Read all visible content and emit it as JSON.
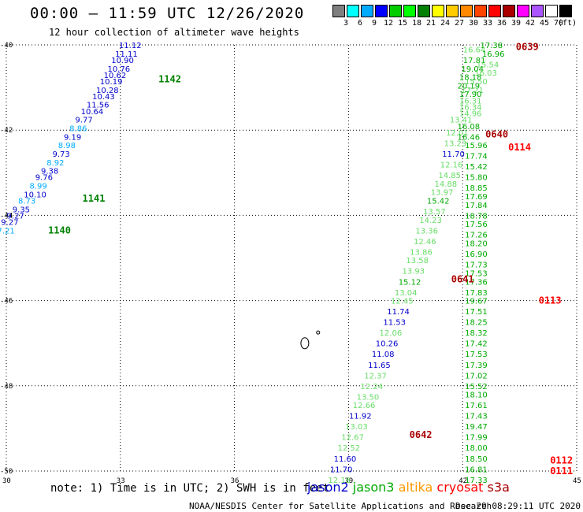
{
  "header": {
    "title": "00:00 – 11:59 UTC 12/26/2020",
    "subtitle": "12 hour collection of altimeter wave heights"
  },
  "legend": {
    "unit": "(ft)",
    "colors": [
      "#7f7f7f",
      "#00ffff",
      "#00aaff",
      "#0000ff",
      "#00cc00",
      "#00ff00",
      "#008000",
      "#ffff00",
      "#ffcc00",
      "#ff8800",
      "#ff4400",
      "#ff0000",
      "#aa0000",
      "#ff00ff",
      "#aa55ff",
      "#ffffff",
      "#000000"
    ],
    "levels": [
      "3",
      "6",
      "9",
      "12",
      "15",
      "18",
      "21",
      "24",
      "27",
      "30",
      "33",
      "36",
      "39",
      "42",
      "45",
      "70"
    ]
  },
  "axes": {
    "lat_ticks": [
      "-40",
      "-42",
      "-44",
      "-46",
      "-48",
      "-50"
    ],
    "lon_ticks": [
      "30",
      "33",
      "36",
      "39",
      "42",
      "45"
    ],
    "lon_range": [
      30,
      45
    ],
    "lat_range": [
      -40,
      -50
    ]
  },
  "tracks": [
    {
      "satellite": "jason3",
      "time": "1140",
      "color": "#008000",
      "lon": 31.1,
      "lat": -44.35
    },
    {
      "satellite": "jason3",
      "time": "1141",
      "color": "#008000",
      "lon": 32.0,
      "lat": -43.6
    },
    {
      "satellite": "jason3",
      "time": "1142",
      "color": "#008000",
      "lon": 34.0,
      "lat": -40.8
    },
    {
      "satellite": "cryosat",
      "time": "0639",
      "color": "#aa0000",
      "lon": 43.4,
      "lat": -40.05
    },
    {
      "satellite": "cryosat",
      "time": "0640",
      "color": "#aa0000",
      "lon": 42.6,
      "lat": -42.1
    },
    {
      "satellite": "s3a",
      "time": "0114",
      "color": "#ff0000",
      "lon": 43.2,
      "lat": -42.4
    },
    {
      "satellite": "cryosat",
      "time": "0641",
      "color": "#aa0000",
      "lon": 41.7,
      "lat": -45.5
    },
    {
      "satellite": "s3a",
      "time": "0113",
      "color": "#ff0000",
      "lon": 44.0,
      "lat": -46.0
    },
    {
      "satellite": "cryosat",
      "time": "0642",
      "color": "#aa0000",
      "lon": 40.6,
      "lat": -49.15
    },
    {
      "satellite": "s3a",
      "time": "0112",
      "color": "#ff0000",
      "lon": 44.3,
      "lat": -49.75
    },
    {
      "satellite": "s3a",
      "time": "0111",
      "color": "#ff0000",
      "lon": 44.3,
      "lat": -50.0
    }
  ],
  "measurements": [
    {
      "v": "11.12",
      "lon": 33.5,
      "lat": -40.0,
      "c": "#0000cc"
    },
    {
      "v": "11.11",
      "lon": 33.4,
      "lat": -40.2,
      "c": "#0000cc"
    },
    {
      "v": "10.90",
      "lon": 33.3,
      "lat": -40.35,
      "c": "#0000cc"
    },
    {
      "v": "10.76",
      "lon": 33.2,
      "lat": -40.55,
      "c": "#0000cc"
    },
    {
      "v": "10.62",
      "lon": 33.1,
      "lat": -40.7,
      "c": "#0000cc"
    },
    {
      "v": "10.19",
      "lon": 33.0,
      "lat": -40.85,
      "c": "#0000cc"
    },
    {
      "v": "10.28",
      "lon": 32.9,
      "lat": -41.05,
      "c": "#0000cc"
    },
    {
      "v": "10.43",
      "lon": 32.8,
      "lat": -41.2,
      "c": "#0000cc"
    },
    {
      "v": "11.56",
      "lon": 32.65,
      "lat": -41.4,
      "c": "#0000cc"
    },
    {
      "v": "10.64",
      "lon": 32.5,
      "lat": -41.55,
      "c": "#0000cc"
    },
    {
      "v": "9.77",
      "lon": 32.35,
      "lat": -41.75,
      "c": "#0000cc"
    },
    {
      "v": "8.86",
      "lon": 32.2,
      "lat": -41.95,
      "c": "#00aaff"
    },
    {
      "v": "9.19",
      "lon": 32.05,
      "lat": -42.15,
      "c": "#0000cc"
    },
    {
      "v": "8.98",
      "lon": 31.9,
      "lat": -42.35,
      "c": "#00aaff"
    },
    {
      "v": "9.73",
      "lon": 31.75,
      "lat": -42.55,
      "c": "#0000cc"
    },
    {
      "v": "8.92",
      "lon": 31.6,
      "lat": -42.75,
      "c": "#00aaff"
    },
    {
      "v": "9.38",
      "lon": 31.45,
      "lat": -42.95,
      "c": "#0000cc"
    },
    {
      "v": "9.76",
      "lon": 31.3,
      "lat": -43.1,
      "c": "#0000cc"
    },
    {
      "v": "8.99",
      "lon": 31.15,
      "lat": -43.3,
      "c": "#00aaff"
    },
    {
      "v": "10.10",
      "lon": 31.0,
      "lat": -43.5,
      "c": "#0000cc"
    },
    {
      "v": "8.73",
      "lon": 30.85,
      "lat": -43.65,
      "c": "#00aaff"
    },
    {
      "v": "9.35",
      "lon": 30.7,
      "lat": -43.85,
      "c": "#0000cc"
    },
    {
      "v": "9.27",
      "lon": 30.55,
      "lat": -44.0,
      "c": "#0000cc"
    },
    {
      "v": "9.27",
      "lon": 30.4,
      "lat": -44.15,
      "c": "#0000cc"
    },
    {
      "v": "7.21",
      "lon": 30.3,
      "lat": -44.35,
      "c": "#00aaff"
    },
    {
      "v": "17.38",
      "lon": 43.0,
      "lat": -40.0,
      "c": "#00aa00"
    },
    {
      "v": "16.64",
      "lon": 42.55,
      "lat": -40.1,
      "c": "#66dd66"
    },
    {
      "v": "16.96",
      "lon": 43.05,
      "lat": -40.2,
      "c": "#00aa00"
    },
    {
      "v": "17.81",
      "lon": 42.55,
      "lat": -40.35,
      "c": "#00aa00"
    },
    {
      "v": "15.54",
      "lon": 42.9,
      "lat": -40.45,
      "c": "#66dd66"
    },
    {
      "v": "19.04",
      "lon": 42.5,
      "lat": -40.55,
      "c": "#00aa00"
    },
    {
      "v": "16.03",
      "lon": 42.85,
      "lat": -40.65,
      "c": "#66dd66"
    },
    {
      "v": "18.18",
      "lon": 42.45,
      "lat": -40.75,
      "c": "#00aa00"
    },
    {
      "v": "15.50",
      "lon": 42.6,
      "lat": -40.85,
      "c": "#66dd66"
    },
    {
      "v": "20.19",
      "lon": 42.4,
      "lat": -40.95,
      "c": "#00aa00"
    },
    {
      "v": "17.21",
      "lon": 42.5,
      "lat": -41.05,
      "c": "#66dd66"
    },
    {
      "v": "17.90",
      "lon": 42.45,
      "lat": -41.15,
      "c": "#00aa00"
    },
    {
      "v": "16.31",
      "lon": 42.45,
      "lat": -41.3,
      "c": "#66dd66"
    },
    {
      "v": "16.34",
      "lon": 42.45,
      "lat": -41.45,
      "c": "#66dd66"
    },
    {
      "v": "14.96",
      "lon": 42.45,
      "lat": -41.6,
      "c": "#66dd66"
    },
    {
      "v": "13.41",
      "lon": 42.2,
      "lat": -41.75,
      "c": "#66dd66"
    },
    {
      "v": "16.08",
      "lon": 42.4,
      "lat": -41.9,
      "c": "#00aa00"
    },
    {
      "v": "12.01",
      "lon": 42.1,
      "lat": -42.05,
      "c": "#66dd66"
    },
    {
      "v": "16.46",
      "lon": 42.4,
      "lat": -42.15,
      "c": "#00aa00"
    },
    {
      "v": "13.23",
      "lon": 42.05,
      "lat": -42.3,
      "c": "#66dd66"
    },
    {
      "v": "15.96",
      "lon": 42.6,
      "lat": -42.35,
      "c": "#00aa00"
    },
    {
      "v": "11.70",
      "lon": 42.0,
      "lat": -42.55,
      "c": "#0000cc"
    },
    {
      "v": "17.74",
      "lon": 42.6,
      "lat": -42.6,
      "c": "#00aa00"
    },
    {
      "v": "12.16",
      "lon": 41.95,
      "lat": -42.8,
      "c": "#66dd66"
    },
    {
      "v": "15.42",
      "lon": 42.6,
      "lat": -42.85,
      "c": "#00aa00"
    },
    {
      "v": "14.85",
      "lon": 41.9,
      "lat": -43.05,
      "c": "#66dd66"
    },
    {
      "v": "15.80",
      "lon": 42.6,
      "lat": -43.1,
      "c": "#00aa00"
    },
    {
      "v": "14.88",
      "lon": 41.8,
      "lat": -43.25,
      "c": "#66dd66"
    },
    {
      "v": "18.85",
      "lon": 42.6,
      "lat": -43.35,
      "c": "#00aa00"
    },
    {
      "v": "13.97",
      "lon": 41.7,
      "lat": -43.45,
      "c": "#66dd66"
    },
    {
      "v": "17.69",
      "lon": 42.6,
      "lat": -43.55,
      "c": "#00aa00"
    },
    {
      "v": "15.42",
      "lon": 41.6,
      "lat": -43.65,
      "c": "#00aa00"
    },
    {
      "v": "17.84",
      "lon": 42.6,
      "lat": -43.75,
      "c": "#00aa00"
    },
    {
      "v": "13.57",
      "lon": 41.5,
      "lat": -43.9,
      "c": "#66dd66"
    },
    {
      "v": "18.78",
      "lon": 42.6,
      "lat": -44.0,
      "c": "#00aa00"
    },
    {
      "v": "14.23",
      "lon": 41.4,
      "lat": -44.1,
      "c": "#66dd66"
    },
    {
      "v": "17.56",
      "lon": 42.6,
      "lat": -44.2,
      "c": "#00aa00"
    },
    {
      "v": "13.36",
      "lon": 41.3,
      "lat": -44.35,
      "c": "#66dd66"
    },
    {
      "v": "17.26",
      "lon": 42.6,
      "lat": -44.45,
      "c": "#00aa00"
    },
    {
      "v": "12.46",
      "lon": 41.25,
      "lat": -44.6,
      "c": "#66dd66"
    },
    {
      "v": "18.20",
      "lon": 42.6,
      "lat": -44.65,
      "c": "#00aa00"
    },
    {
      "v": "13.86",
      "lon": 41.15,
      "lat": -44.85,
      "c": "#66dd66"
    },
    {
      "v": "16.90",
      "lon": 42.6,
      "lat": -44.9,
      "c": "#00aa00"
    },
    {
      "v": "13.58",
      "lon": 41.05,
      "lat": -45.05,
      "c": "#66dd66"
    },
    {
      "v": "17.73",
      "lon": 42.6,
      "lat": -45.15,
      "c": "#00aa00"
    },
    {
      "v": "13.93",
      "lon": 40.95,
      "lat": -45.3,
      "c": "#66dd66"
    },
    {
      "v": "17.53",
      "lon": 42.6,
      "lat": -45.35,
      "c": "#00aa00"
    },
    {
      "v": "15.12",
      "lon": 40.85,
      "lat": -45.55,
      "c": "#00aa00"
    },
    {
      "v": "17.36",
      "lon": 42.6,
      "lat": -45.55,
      "c": "#00aa00"
    },
    {
      "v": "13.04",
      "lon": 40.75,
      "lat": -45.8,
      "c": "#66dd66"
    },
    {
      "v": "17.83",
      "lon": 42.6,
      "lat": -45.8,
      "c": "#00aa00"
    },
    {
      "v": "12.45",
      "lon": 40.65,
      "lat": -46.0,
      "c": "#66dd66"
    },
    {
      "v": "19.67",
      "lon": 42.6,
      "lat": -46.0,
      "c": "#00aa00"
    },
    {
      "v": "11.74",
      "lon": 40.55,
      "lat": -46.25,
      "c": "#0000cc"
    },
    {
      "v": "17.51",
      "lon": 42.6,
      "lat": -46.25,
      "c": "#00aa00"
    },
    {
      "v": "11.53",
      "lon": 40.45,
      "lat": -46.5,
      "c": "#0000cc"
    },
    {
      "v": "18.25",
      "lon": 42.6,
      "lat": -46.5,
      "c": "#00aa00"
    },
    {
      "v": "12.06",
      "lon": 40.35,
      "lat": -46.75,
      "c": "#66dd66"
    },
    {
      "v": "18.32",
      "lon": 42.6,
      "lat": -46.75,
      "c": "#00aa00"
    },
    {
      "v": "10.26",
      "lon": 40.25,
      "lat": -47.0,
      "c": "#0000cc"
    },
    {
      "v": "17.42",
      "lon": 42.6,
      "lat": -47.0,
      "c": "#00aa00"
    },
    {
      "v": "11.08",
      "lon": 40.15,
      "lat": -47.25,
      "c": "#0000cc"
    },
    {
      "v": "17.53",
      "lon": 42.6,
      "lat": -47.25,
      "c": "#00aa00"
    },
    {
      "v": "11.65",
      "lon": 40.05,
      "lat": -47.5,
      "c": "#0000cc"
    },
    {
      "v": "17.39",
      "lon": 42.6,
      "lat": -47.5,
      "c": "#00aa00"
    },
    {
      "v": "12.37",
      "lon": 39.95,
      "lat": -47.75,
      "c": "#66dd66"
    },
    {
      "v": "17.02",
      "lon": 42.6,
      "lat": -47.75,
      "c": "#00aa00"
    },
    {
      "v": "12.24",
      "lon": 39.85,
      "lat": -48.0,
      "c": "#66dd66"
    },
    {
      "v": "15.52",
      "lon": 42.6,
      "lat": -48.0,
      "c": "#00aa00"
    },
    {
      "v": "13.50",
      "lon": 39.75,
      "lat": -48.25,
      "c": "#66dd66"
    },
    {
      "v": "18.10",
      "lon": 42.6,
      "lat": -48.2,
      "c": "#00aa00"
    },
    {
      "v": "12.66",
      "lon": 39.65,
      "lat": -48.45,
      "c": "#66dd66"
    },
    {
      "v": "17.61",
      "lon": 42.6,
      "lat": -48.45,
      "c": "#00aa00"
    },
    {
      "v": "11.92",
      "lon": 39.55,
      "lat": -48.7,
      "c": "#0000cc"
    },
    {
      "v": "17.43",
      "lon": 42.6,
      "lat": -48.7,
      "c": "#00aa00"
    },
    {
      "v": "13.03",
      "lon": 39.45,
      "lat": -48.95,
      "c": "#66dd66"
    },
    {
      "v": "19.47",
      "lon": 42.6,
      "lat": -48.95,
      "c": "#00aa00"
    },
    {
      "v": "12.67",
      "lon": 39.35,
      "lat": -49.2,
      "c": "#66dd66"
    },
    {
      "v": "17.99",
      "lon": 42.6,
      "lat": -49.2,
      "c": "#00aa00"
    },
    {
      "v": "12.52",
      "lon": 39.25,
      "lat": -49.45,
      "c": "#66dd66"
    },
    {
      "v": "18.00",
      "lon": 42.6,
      "lat": -49.45,
      "c": "#00aa00"
    },
    {
      "v": "11.60",
      "lon": 39.15,
      "lat": -49.7,
      "c": "#0000cc"
    },
    {
      "v": "18.50",
      "lon": 42.6,
      "lat": -49.7,
      "c": "#00aa00"
    },
    {
      "v": "11.70",
      "lon": 39.05,
      "lat": -49.95,
      "c": "#0000cc"
    },
    {
      "v": "16.81",
      "lon": 42.6,
      "lat": -49.95,
      "c": "#00aa00"
    },
    {
      "v": "12.18",
      "lon": 39.0,
      "lat": -50.2,
      "c": "#66dd66"
    },
    {
      "v": "17.33",
      "lon": 42.6,
      "lat": -50.2,
      "c": "#00aa00"
    }
  ],
  "footer": {
    "note": "note: 1) Time is in UTC; 2) SWH is in feet",
    "satellites": [
      {
        "name": "jason2",
        "color": "#0000cc"
      },
      {
        "name": "jason3",
        "color": "#00aa00"
      },
      {
        "name": "altika",
        "color": "#ff9900"
      },
      {
        "name": "cryosat",
        "color": "#ff0000"
      },
      {
        "name": "s3a",
        "color": "#aa0000"
      }
    ],
    "credit": "NOAA/NESDIS Center for Satellite Applications and Research",
    "timestamp": "Dec 29 08:29:11 UTC 2020"
  }
}
